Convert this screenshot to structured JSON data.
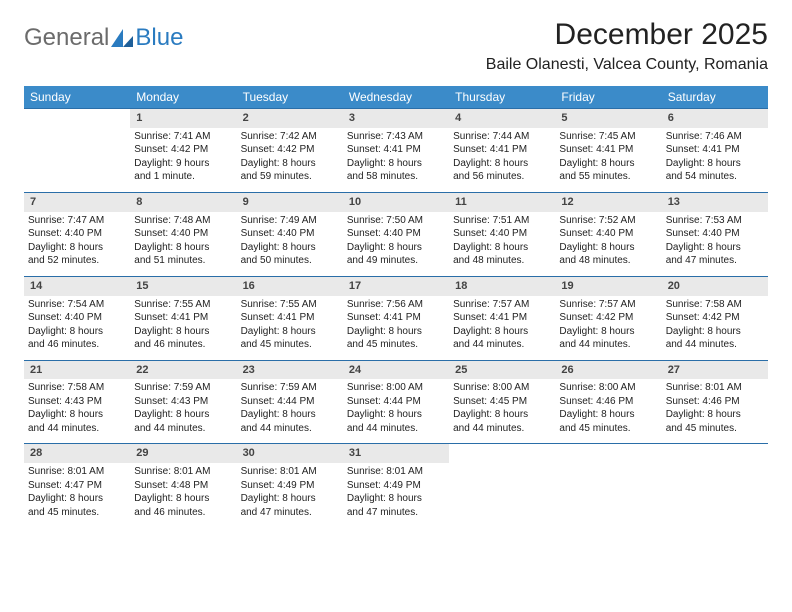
{
  "logo": {
    "text1": "General",
    "text2": "Blue"
  },
  "title": "December 2025",
  "location": "Baile Olanesti, Valcea County, Romania",
  "colors": {
    "header_bg": "#3b8bc9",
    "header_text": "#ffffff",
    "daynum_bg": "#e9e9e9",
    "row_border": "#2a6ea8",
    "logo_gray": "#6b6b6b",
    "logo_blue": "#2a7bc0"
  },
  "weekdays": [
    "Sunday",
    "Monday",
    "Tuesday",
    "Wednesday",
    "Thursday",
    "Friday",
    "Saturday"
  ],
  "weeks": [
    {
      "nums": [
        "",
        "1",
        "2",
        "3",
        "4",
        "5",
        "6"
      ],
      "cells": [
        null,
        {
          "sunrise": "7:41 AM",
          "sunset": "4:42 PM",
          "day1": "Daylight: 9 hours",
          "day2": "and 1 minute."
        },
        {
          "sunrise": "7:42 AM",
          "sunset": "4:42 PM",
          "day1": "Daylight: 8 hours",
          "day2": "and 59 minutes."
        },
        {
          "sunrise": "7:43 AM",
          "sunset": "4:41 PM",
          "day1": "Daylight: 8 hours",
          "day2": "and 58 minutes."
        },
        {
          "sunrise": "7:44 AM",
          "sunset": "4:41 PM",
          "day1": "Daylight: 8 hours",
          "day2": "and 56 minutes."
        },
        {
          "sunrise": "7:45 AM",
          "sunset": "4:41 PM",
          "day1": "Daylight: 8 hours",
          "day2": "and 55 minutes."
        },
        {
          "sunrise": "7:46 AM",
          "sunset": "4:41 PM",
          "day1": "Daylight: 8 hours",
          "day2": "and 54 minutes."
        }
      ]
    },
    {
      "nums": [
        "7",
        "8",
        "9",
        "10",
        "11",
        "12",
        "13"
      ],
      "cells": [
        {
          "sunrise": "7:47 AM",
          "sunset": "4:40 PM",
          "day1": "Daylight: 8 hours",
          "day2": "and 52 minutes."
        },
        {
          "sunrise": "7:48 AM",
          "sunset": "4:40 PM",
          "day1": "Daylight: 8 hours",
          "day2": "and 51 minutes."
        },
        {
          "sunrise": "7:49 AM",
          "sunset": "4:40 PM",
          "day1": "Daylight: 8 hours",
          "day2": "and 50 minutes."
        },
        {
          "sunrise": "7:50 AM",
          "sunset": "4:40 PM",
          "day1": "Daylight: 8 hours",
          "day2": "and 49 minutes."
        },
        {
          "sunrise": "7:51 AM",
          "sunset": "4:40 PM",
          "day1": "Daylight: 8 hours",
          "day2": "and 48 minutes."
        },
        {
          "sunrise": "7:52 AM",
          "sunset": "4:40 PM",
          "day1": "Daylight: 8 hours",
          "day2": "and 48 minutes."
        },
        {
          "sunrise": "7:53 AM",
          "sunset": "4:40 PM",
          "day1": "Daylight: 8 hours",
          "day2": "and 47 minutes."
        }
      ]
    },
    {
      "nums": [
        "14",
        "15",
        "16",
        "17",
        "18",
        "19",
        "20"
      ],
      "cells": [
        {
          "sunrise": "7:54 AM",
          "sunset": "4:40 PM",
          "day1": "Daylight: 8 hours",
          "day2": "and 46 minutes."
        },
        {
          "sunrise": "7:55 AM",
          "sunset": "4:41 PM",
          "day1": "Daylight: 8 hours",
          "day2": "and 46 minutes."
        },
        {
          "sunrise": "7:55 AM",
          "sunset": "4:41 PM",
          "day1": "Daylight: 8 hours",
          "day2": "and 45 minutes."
        },
        {
          "sunrise": "7:56 AM",
          "sunset": "4:41 PM",
          "day1": "Daylight: 8 hours",
          "day2": "and 45 minutes."
        },
        {
          "sunrise": "7:57 AM",
          "sunset": "4:41 PM",
          "day1": "Daylight: 8 hours",
          "day2": "and 44 minutes."
        },
        {
          "sunrise": "7:57 AM",
          "sunset": "4:42 PM",
          "day1": "Daylight: 8 hours",
          "day2": "and 44 minutes."
        },
        {
          "sunrise": "7:58 AM",
          "sunset": "4:42 PM",
          "day1": "Daylight: 8 hours",
          "day2": "and 44 minutes."
        }
      ]
    },
    {
      "nums": [
        "21",
        "22",
        "23",
        "24",
        "25",
        "26",
        "27"
      ],
      "cells": [
        {
          "sunrise": "7:58 AM",
          "sunset": "4:43 PM",
          "day1": "Daylight: 8 hours",
          "day2": "and 44 minutes."
        },
        {
          "sunrise": "7:59 AM",
          "sunset": "4:43 PM",
          "day1": "Daylight: 8 hours",
          "day2": "and 44 minutes."
        },
        {
          "sunrise": "7:59 AM",
          "sunset": "4:44 PM",
          "day1": "Daylight: 8 hours",
          "day2": "and 44 minutes."
        },
        {
          "sunrise": "8:00 AM",
          "sunset": "4:44 PM",
          "day1": "Daylight: 8 hours",
          "day2": "and 44 minutes."
        },
        {
          "sunrise": "8:00 AM",
          "sunset": "4:45 PM",
          "day1": "Daylight: 8 hours",
          "day2": "and 44 minutes."
        },
        {
          "sunrise": "8:00 AM",
          "sunset": "4:46 PM",
          "day1": "Daylight: 8 hours",
          "day2": "and 45 minutes."
        },
        {
          "sunrise": "8:01 AM",
          "sunset": "4:46 PM",
          "day1": "Daylight: 8 hours",
          "day2": "and 45 minutes."
        }
      ]
    },
    {
      "nums": [
        "28",
        "29",
        "30",
        "31",
        "",
        "",
        ""
      ],
      "cells": [
        {
          "sunrise": "8:01 AM",
          "sunset": "4:47 PM",
          "day1": "Daylight: 8 hours",
          "day2": "and 45 minutes."
        },
        {
          "sunrise": "8:01 AM",
          "sunset": "4:48 PM",
          "day1": "Daylight: 8 hours",
          "day2": "and 46 minutes."
        },
        {
          "sunrise": "8:01 AM",
          "sunset": "4:49 PM",
          "day1": "Daylight: 8 hours",
          "day2": "and 47 minutes."
        },
        {
          "sunrise": "8:01 AM",
          "sunset": "4:49 PM",
          "day1": "Daylight: 8 hours",
          "day2": "and 47 minutes."
        },
        null,
        null,
        null
      ]
    }
  ]
}
